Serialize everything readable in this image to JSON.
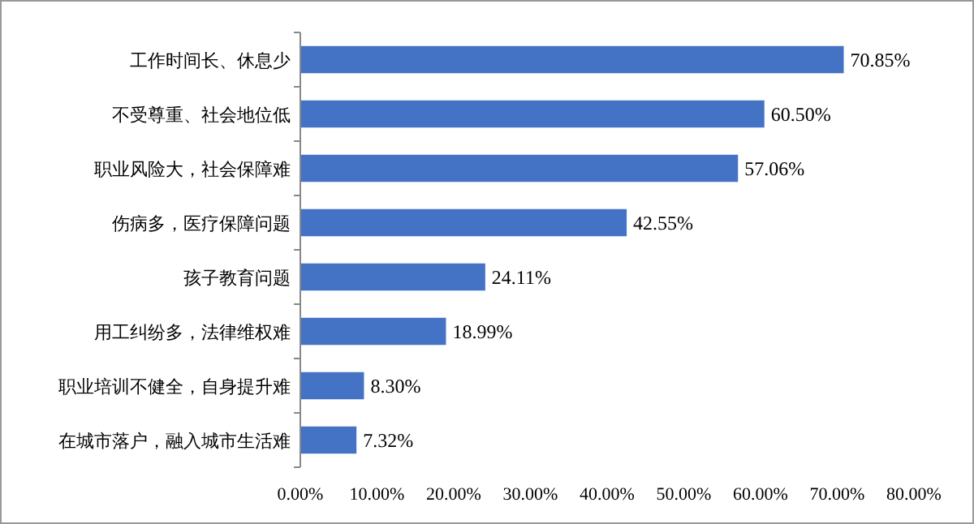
{
  "chart_data": {
    "type": "bar",
    "orientation": "horizontal",
    "categories": [
      "工作时间长、休息少",
      "不受尊重、社会地位低",
      "职业风险大，社会保障难",
      "伤病多，医疗保障问题",
      "孩子教育问题",
      "用工纠纷多，法律维权难",
      "职业培训不健全，自身提升难",
      "在城市落户，融入城市生活难"
    ],
    "values": [
      70.85,
      60.5,
      57.06,
      42.55,
      24.11,
      18.99,
      8.3,
      7.32
    ],
    "value_labels": [
      "70.85%",
      "60.50%",
      "57.06%",
      "42.55%",
      "24.11%",
      "18.99%",
      "8.30%",
      "7.32%"
    ],
    "color": "#4472c4",
    "xlim": [
      0,
      80
    ],
    "xticks": [
      {
        "value": 0,
        "label": "0.00%"
      },
      {
        "value": 10,
        "label": "10.00%"
      },
      {
        "value": 20,
        "label": "20.00%"
      },
      {
        "value": 30,
        "label": "30.00%"
      },
      {
        "value": 40,
        "label": "40.00%"
      },
      {
        "value": 50,
        "label": "50.00%"
      },
      {
        "value": 60,
        "label": "60.00%"
      },
      {
        "value": 70,
        "label": "70.00%"
      },
      {
        "value": 80,
        "label": "80.00%"
      }
    ],
    "grid": false
  }
}
